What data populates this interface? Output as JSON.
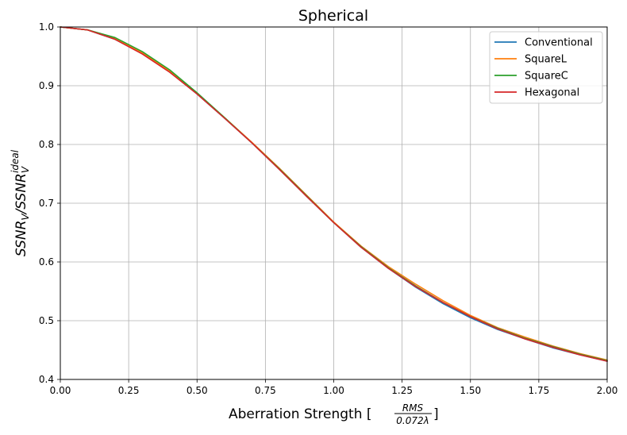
{
  "chart_data": {
    "type": "line",
    "title": "Spherical",
    "xlabel": {
      "main": "Aberration Strength [",
      "frac_num": "RMS",
      "frac_den": "0.072λ",
      "close": "]"
    },
    "ylabel": {
      "ssnr1": "SSNR",
      "sub1": "V",
      "slash": "/",
      "ssnr2": "SSNR",
      "sub2": "V",
      "sup2": "ideal"
    },
    "xlim": [
      0.0,
      2.0
    ],
    "ylim": [
      0.4,
      1.0
    ],
    "xticks": [
      0.0,
      0.25,
      0.5,
      0.75,
      1.0,
      1.25,
      1.5,
      1.75,
      2.0
    ],
    "xtick_labels": [
      "0.00",
      "0.25",
      "0.50",
      "0.75",
      "1.00",
      "1.25",
      "1.50",
      "1.75",
      "2.00"
    ],
    "yticks": [
      0.4,
      0.5,
      0.6,
      0.7,
      0.8,
      0.9,
      1.0
    ],
    "ytick_labels": [
      "0.4",
      "0.5",
      "0.6",
      "0.7",
      "0.8",
      "0.9",
      "1.0"
    ],
    "grid": true,
    "legend_position": "top-right",
    "x": [
      0.0,
      0.1,
      0.2,
      0.3,
      0.4,
      0.5,
      0.6,
      0.7,
      0.8,
      0.9,
      1.0,
      1.1,
      1.2,
      1.3,
      1.4,
      1.5,
      1.6,
      1.7,
      1.8,
      1.9,
      2.0
    ],
    "series": [
      {
        "name": "Conventional",
        "color": "#1f77b4",
        "values": [
          1.0,
          0.995,
          0.979,
          0.955,
          0.924,
          0.886,
          0.845,
          0.803,
          0.758,
          0.712,
          0.667,
          0.625,
          0.589,
          0.557,
          0.529,
          0.505,
          0.485,
          0.469,
          0.454,
          0.442,
          0.431
        ]
      },
      {
        "name": "SquareL",
        "color": "#ff7f0e",
        "values": [
          1.0,
          0.995,
          0.98,
          0.956,
          0.925,
          0.887,
          0.846,
          0.804,
          0.76,
          0.714,
          0.668,
          0.627,
          0.592,
          0.562,
          0.534,
          0.509,
          0.488,
          0.472,
          0.457,
          0.444,
          0.433
        ]
      },
      {
        "name": "SquareC",
        "color": "#2ca02c",
        "values": [
          1.0,
          0.995,
          0.982,
          0.958,
          0.927,
          0.888,
          0.846,
          0.803,
          0.759,
          0.713,
          0.667,
          0.626,
          0.59,
          0.559,
          0.531,
          0.507,
          0.487,
          0.47,
          0.456,
          0.443,
          0.432
        ]
      },
      {
        "name": "Hexagonal",
        "color": "#d62728",
        "values": [
          1.0,
          0.995,
          0.979,
          0.954,
          0.923,
          0.886,
          0.845,
          0.803,
          0.758,
          0.712,
          0.667,
          0.625,
          0.589,
          0.558,
          0.531,
          0.507,
          0.486,
          0.469,
          0.455,
          0.442,
          0.431
        ]
      }
    ]
  }
}
